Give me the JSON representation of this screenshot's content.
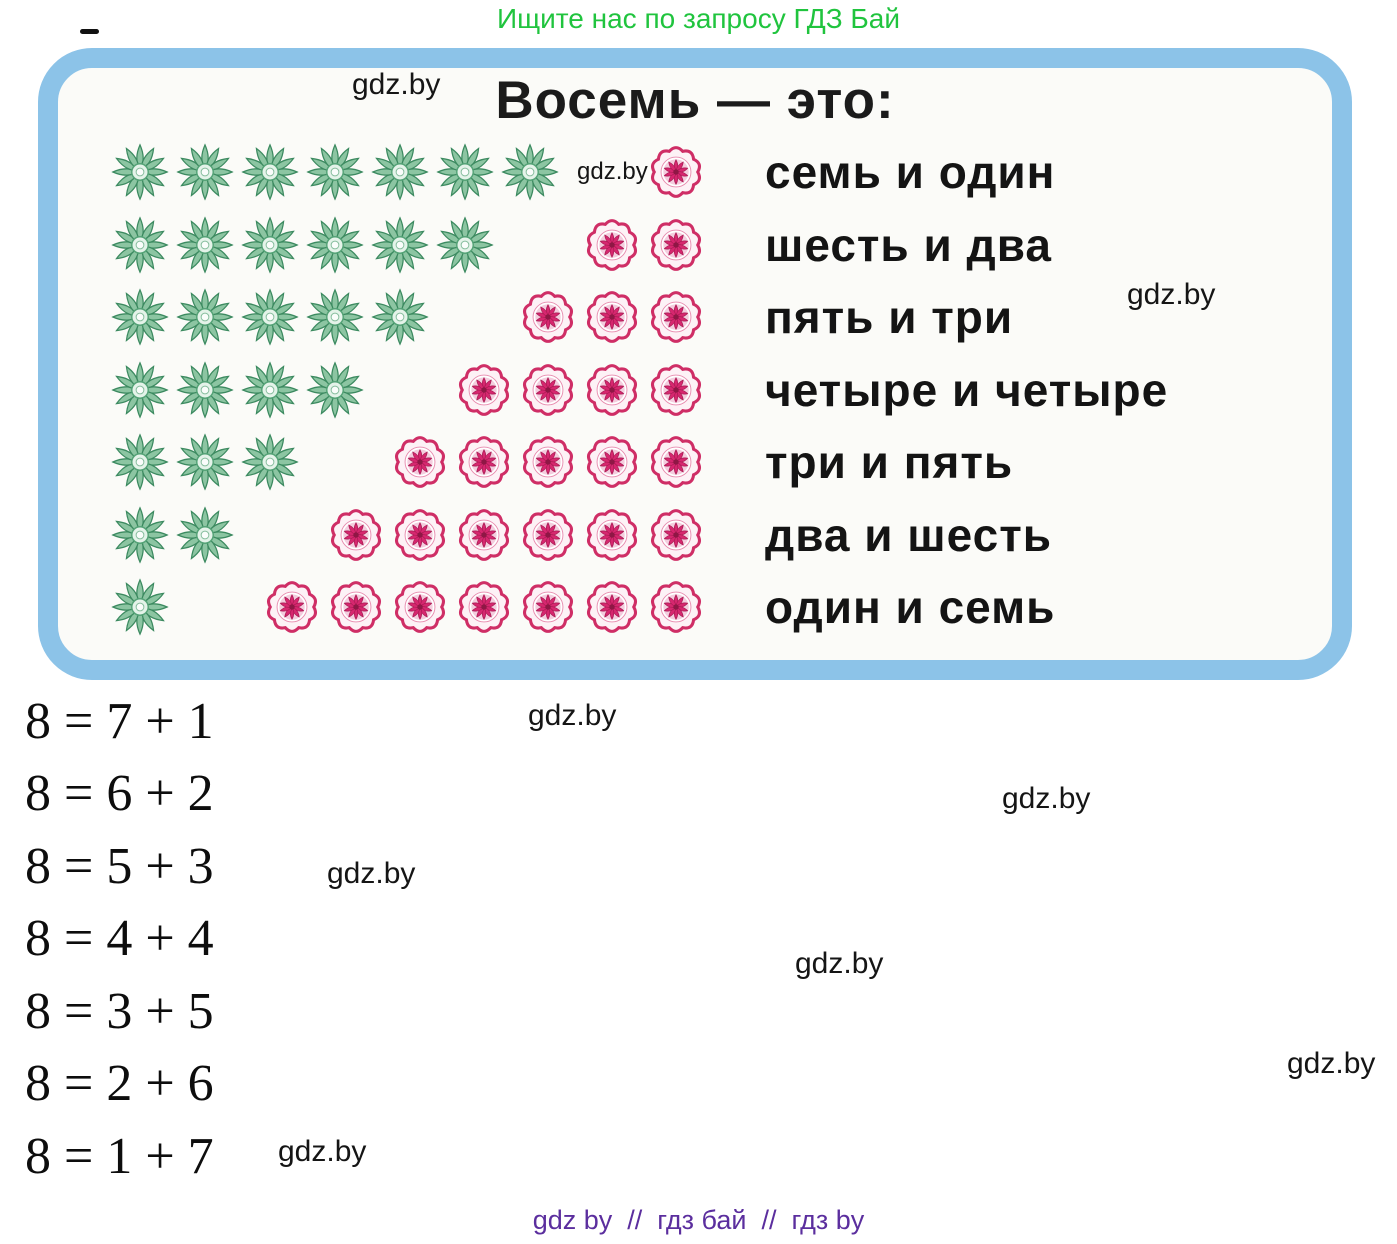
{
  "page": {
    "promo_text": "Ищите нас по запросу ГДЗ Бай",
    "promo_color": "#20c43e",
    "watermark_text": "gdz.by",
    "footer_text": "gdz by  //  гдз бай  //  гдз by",
    "footer_color": "#5b2e9e"
  },
  "card": {
    "title": "Восемь — это:",
    "border_color": "#8cc3e8",
    "flower_colors": {
      "green": "#4f9e6c",
      "pink": "#d0306c"
    },
    "rows": [
      {
        "green": 7,
        "pink": 1,
        "label": "семь и один"
      },
      {
        "green": 6,
        "pink": 2,
        "label": "шесть и два"
      },
      {
        "green": 5,
        "pink": 3,
        "label": "пять и три"
      },
      {
        "green": 4,
        "pink": 4,
        "label": "четыре и четыре"
      },
      {
        "green": 3,
        "pink": 5,
        "label": "три и пять"
      },
      {
        "green": 2,
        "pink": 6,
        "label": "два и шесть"
      },
      {
        "green": 1,
        "pink": 7,
        "label": "один и семь"
      }
    ]
  },
  "equations": [
    "8 = 7 + 1",
    "8 = 6 + 2",
    "8 = 5 + 3",
    "8 = 4 + 4",
    "8 = 3 + 5",
    "8 = 2 + 6",
    "8 = 1 + 7"
  ]
}
